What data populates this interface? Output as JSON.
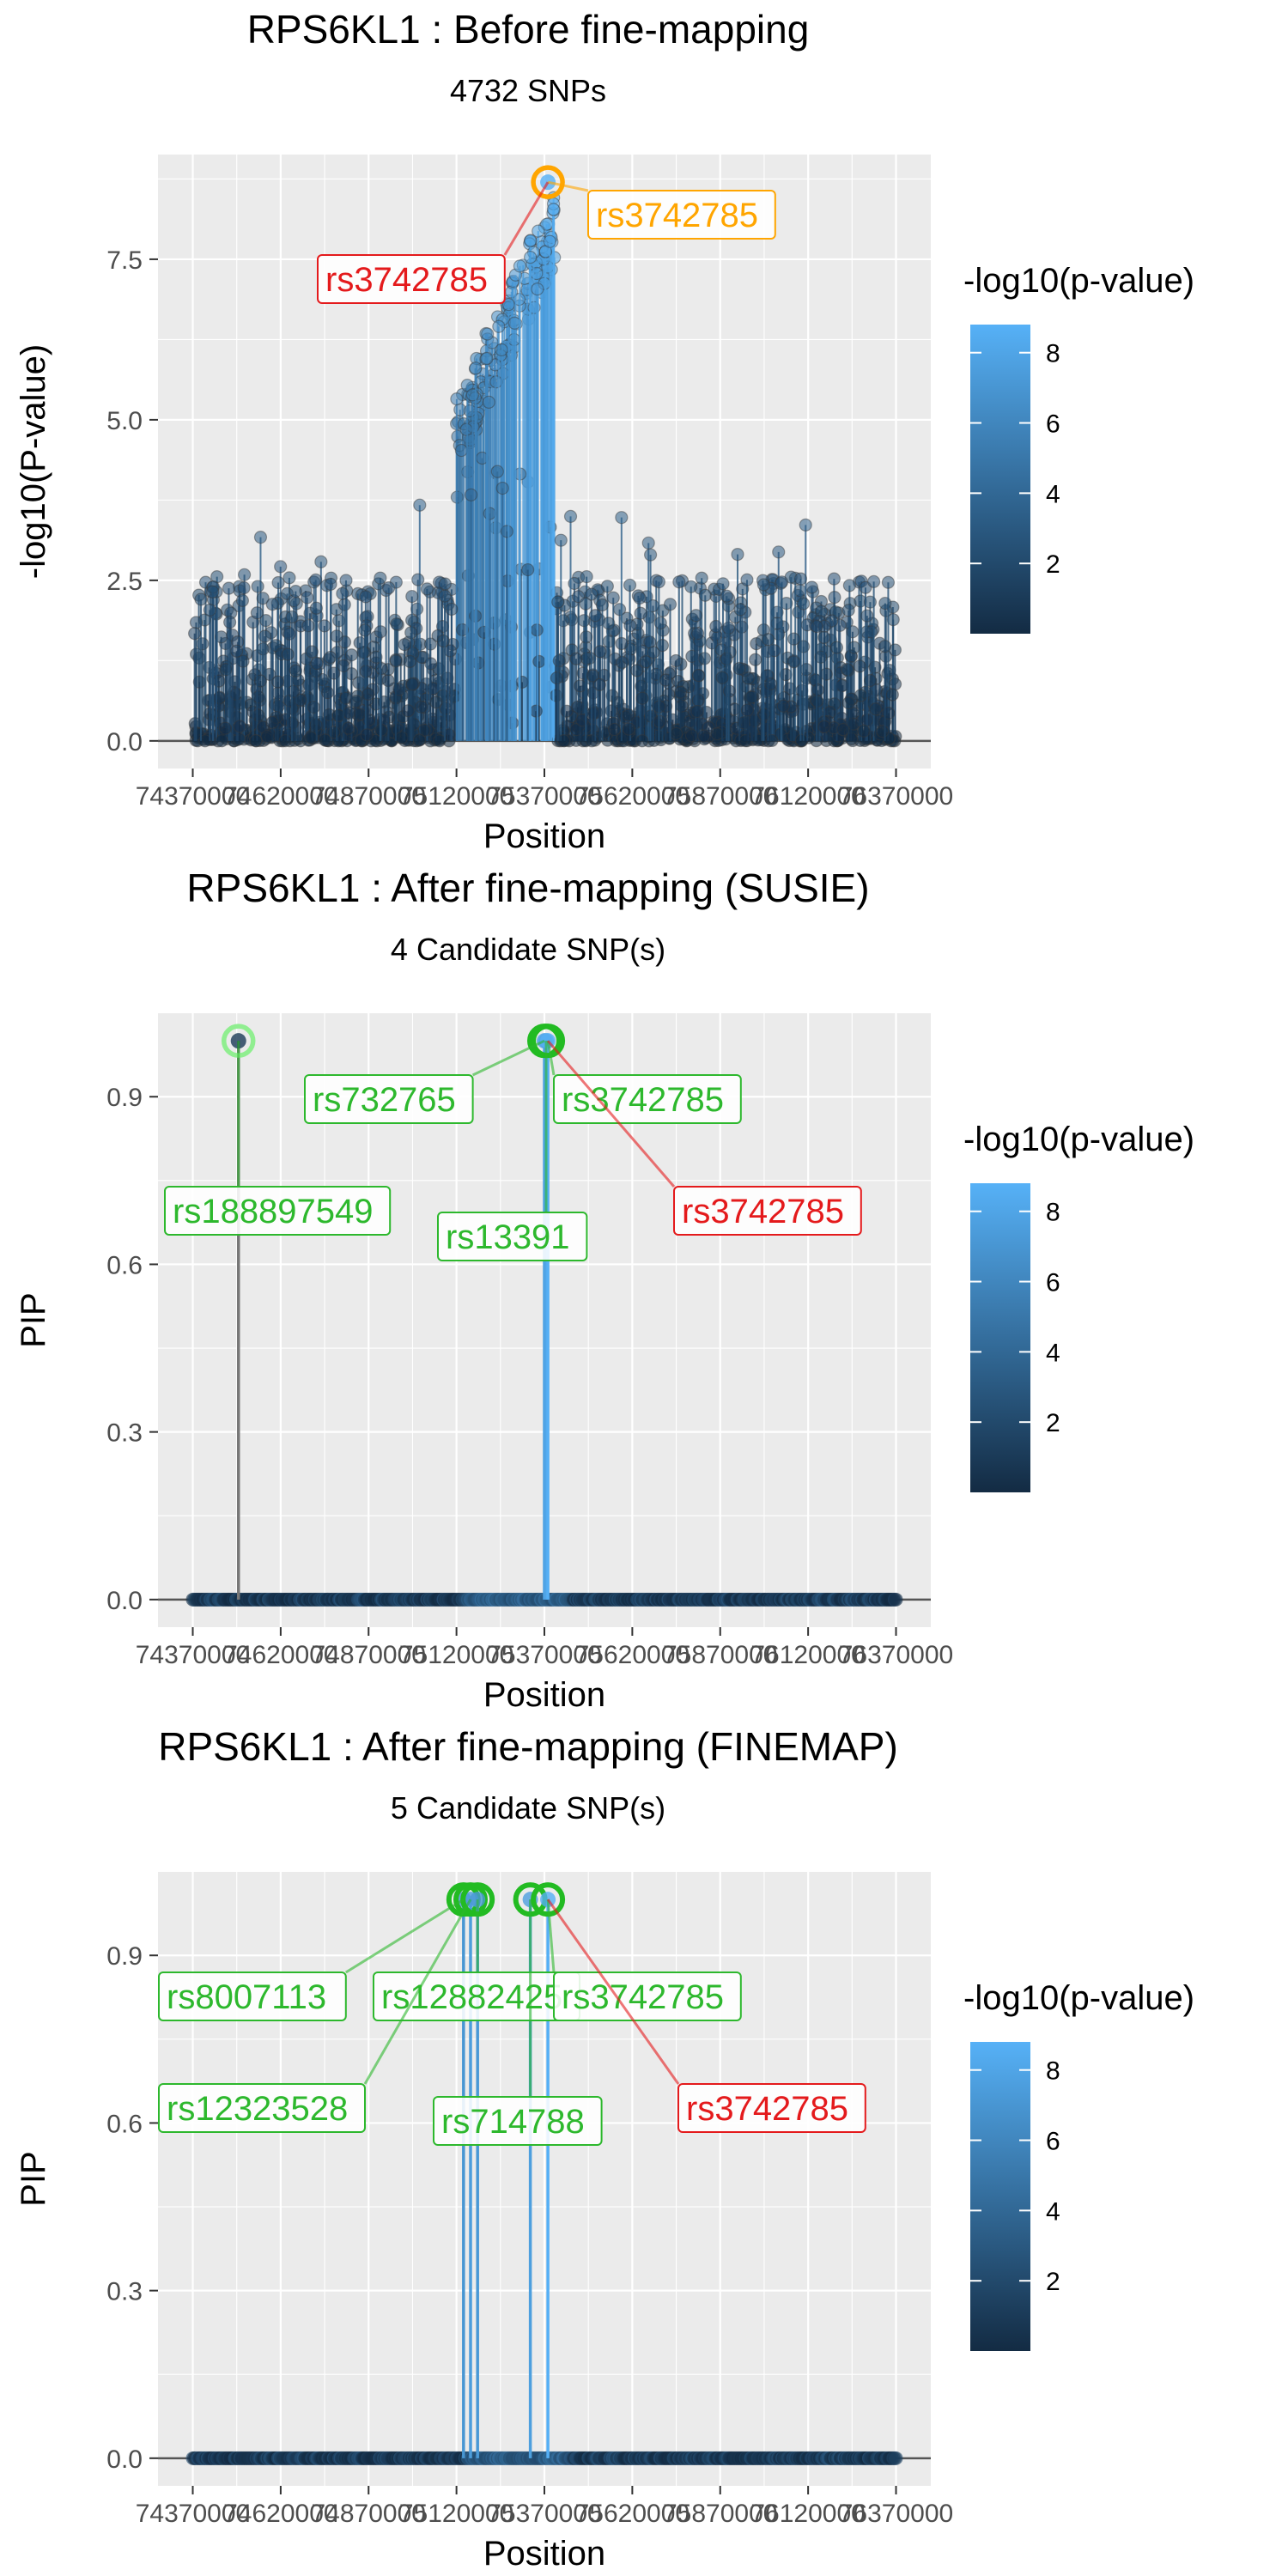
{
  "chart_data": [
    {
      "type": "scatter",
      "title": "RPS6KL1 : Before fine-mapping",
      "subtitle": "4732 SNPs",
      "xlabel": "Position",
      "ylabel": "-log10(P-value)",
      "xlim": [
        74370000,
        76370000
      ],
      "ylim": [
        0,
        8.7
      ],
      "x_ticks": [
        74370000,
        74620000,
        74870000,
        75120000,
        75370000,
        75620000,
        75870000,
        76120000,
        76370000
      ],
      "x_tick_labels": [
        "74370000",
        "74620000",
        "74870000",
        "75120000",
        "75370000",
        "75620000",
        "75870000",
        "76120000",
        "76370000"
      ],
      "y_ticks": [
        0,
        2.5,
        5,
        7.5
      ],
      "y_tick_labels": [
        "0.0",
        "2.5",
        "5.0",
        "7.5"
      ],
      "grid": true,
      "legend": {
        "title": "-log10(p-value)",
        "ticks": [
          "2",
          "4",
          "6",
          "8"
        ],
        "tick_values": [
          2,
          4,
          6,
          8
        ],
        "range": [
          0,
          8.8
        ],
        "low_color": "#132B43",
        "high_color": "#56B1F7",
        "placement": "right"
      },
      "background_points": {
        "count": 4732,
        "baseline_range": [
          0,
          1.6
        ],
        "peak_region": [
          75120000,
          75400000
        ],
        "peak_max": 8.7
      },
      "highlight": [
        {
          "x": 75380000,
          "y": 8.7,
          "style": "orange-ring"
        }
      ],
      "annotations": [
        {
          "text": "rs3742785",
          "color": "#FFA500",
          "x": 75380000,
          "y": 8.7
        },
        {
          "text": "rs3742785",
          "color": "#E41A1C",
          "x": 75380000,
          "y": 8.7
        }
      ]
    },
    {
      "type": "scatter",
      "title": "RPS6KL1 : After fine-mapping (SUSIE)",
      "subtitle": "4 Candidate SNP(s)",
      "xlabel": "Position",
      "ylabel": "PIP",
      "xlim": [
        74370000,
        76370000
      ],
      "ylim": [
        0,
        1
      ],
      "x_ticks": [
        74370000,
        74620000,
        74870000,
        75120000,
        75370000,
        75620000,
        75870000,
        76120000,
        76370000
      ],
      "x_tick_labels": [
        "74370000",
        "74620000",
        "74870000",
        "75120000",
        "75370000",
        "75620000",
        "75870000",
        "76120000",
        "76370000"
      ],
      "y_ticks": [
        0,
        0.3,
        0.6,
        0.9
      ],
      "y_tick_labels": [
        "0.0",
        "0.3",
        "0.6",
        "0.9"
      ],
      "grid": true,
      "legend": {
        "title": "-log10(p-value)",
        "ticks": [
          "2",
          "4",
          "6",
          "8"
        ],
        "tick_values": [
          2,
          4,
          6,
          8
        ],
        "range": [
          0,
          8.8
        ],
        "low_color": "#132B43",
        "high_color": "#56B1F7",
        "placement": "right"
      },
      "highlight": [
        {
          "x": 74500000,
          "y": 1.0,
          "logp": 1.0,
          "style": "light-green-ring"
        },
        {
          "x": 75370000,
          "y": 1.0,
          "logp": 7.8,
          "style": "green-ring"
        },
        {
          "x": 75375000,
          "y": 1.0,
          "logp": 8.0,
          "style": "green-ring"
        },
        {
          "x": 75380000,
          "y": 1.0,
          "logp": 8.7,
          "style": "green-ring"
        }
      ],
      "annotations": [
        {
          "text": "rs188897549",
          "color": "#2DB82D",
          "x": 74500000,
          "y": 1.0
        },
        {
          "text": "rs732765",
          "color": "#2DB82D",
          "x": 75370000,
          "y": 1.0
        },
        {
          "text": "rs3742785",
          "color": "#2DB82D",
          "x": 75380000,
          "y": 1.0
        },
        {
          "text": "rs13391",
          "color": "#2DB82D",
          "x": 75375000,
          "y": 1.0
        },
        {
          "text": "rs3742785",
          "color": "#E41A1C",
          "x": 75380000,
          "y": 1.0
        }
      ]
    },
    {
      "type": "scatter",
      "title": "RPS6KL1 : After fine-mapping (FINEMAP)",
      "subtitle": "5 Candidate SNP(s)",
      "xlabel": "Position",
      "ylabel": "PIP",
      "xlim": [
        74370000,
        76370000
      ],
      "ylim": [
        0,
        1
      ],
      "x_ticks": [
        74370000,
        74620000,
        74870000,
        75120000,
        75370000,
        75620000,
        75870000,
        76120000,
        76370000
      ],
      "x_tick_labels": [
        "74370000",
        "74620000",
        "74870000",
        "75120000",
        "75370000",
        "75620000",
        "75870000",
        "76120000",
        "76370000"
      ],
      "y_ticks": [
        0,
        0.3,
        0.6,
        0.9
      ],
      "y_tick_labels": [
        "0.0",
        "0.3",
        "0.6",
        "0.9"
      ],
      "grid": true,
      "legend": {
        "title": "-log10(p-value)",
        "ticks": [
          "2",
          "4",
          "6",
          "8"
        ],
        "tick_values": [
          2,
          4,
          6,
          8
        ],
        "range": [
          0,
          8.8
        ],
        "low_color": "#132B43",
        "high_color": "#56B1F7",
        "placement": "right"
      },
      "highlight": [
        {
          "x": 75140000,
          "y": 1.0,
          "logp": 7.0,
          "style": "green-ring"
        },
        {
          "x": 75160000,
          "y": 1.0,
          "logp": 7.5,
          "style": "green-ring"
        },
        {
          "x": 75180000,
          "y": 1.0,
          "logp": 7.2,
          "style": "green-ring"
        },
        {
          "x": 75330000,
          "y": 1.0,
          "logp": 7.6,
          "style": "green-ring"
        },
        {
          "x": 75380000,
          "y": 1.0,
          "logp": 8.7,
          "style": "green-ring"
        }
      ],
      "annotations": [
        {
          "text": "rs8007113",
          "color": "#2DB82D",
          "x": 75140000,
          "y": 1.0
        },
        {
          "text": "rs12882425",
          "color": "#2DB82D",
          "x": 75180000,
          "y": 1.0
        },
        {
          "text": "rs3742785",
          "color": "#2DB82D",
          "x": 75380000,
          "y": 1.0
        },
        {
          "text": "rs12323528",
          "color": "#2DB82D",
          "x": 75160000,
          "y": 1.0
        },
        {
          "text": "rs714788",
          "color": "#2DB82D",
          "x": 75330000,
          "y": 1.0
        },
        {
          "text": "rs3742785",
          "color": "#E41A1C",
          "x": 75380000,
          "y": 1.0
        }
      ]
    }
  ]
}
